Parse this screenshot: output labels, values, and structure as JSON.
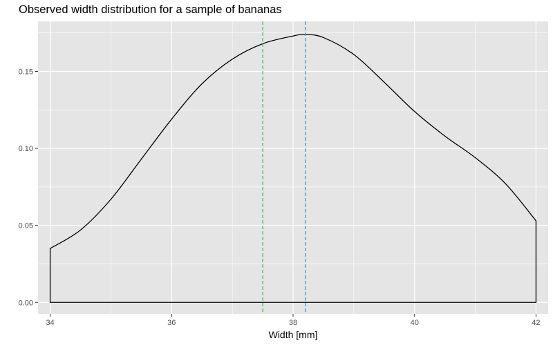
{
  "chart_data": {
    "type": "area",
    "title": "Observed width distribution for a sample of bananas",
    "xlabel": "Width [mm]",
    "ylabel": "",
    "xlim": [
      33.8,
      42.2
    ],
    "ylim": [
      -0.0075,
      0.1825
    ],
    "x_ticks": [
      34,
      36,
      38,
      40,
      42
    ],
    "x_tick_labels": [
      "34",
      "36",
      "38",
      "40",
      "42"
    ],
    "y_ticks": [
      0.0,
      0.05,
      0.1,
      0.15
    ],
    "y_tick_labels": [
      "0.00",
      "0.05",
      "0.10",
      "0.15"
    ],
    "grid": true,
    "panel_background": "#e5e5e5",
    "grid_color": "#ffffff",
    "series": [
      {
        "style": "density-outline",
        "color": "#000000",
        "x": [
          34.0,
          34.5,
          35.0,
          35.5,
          36.0,
          36.5,
          37.0,
          37.5,
          38.0,
          38.2,
          38.5,
          39.0,
          39.5,
          40.0,
          40.5,
          41.0,
          41.5,
          42.0
        ],
        "y": [
          0.035,
          0.047,
          0.067,
          0.093,
          0.119,
          0.142,
          0.158,
          0.168,
          0.173,
          0.174,
          0.172,
          0.161,
          0.143,
          0.124,
          0.108,
          0.094,
          0.077,
          0.053
        ]
      }
    ],
    "vlines": [
      {
        "x": 37.5,
        "color": "#2ebd52",
        "linestyle": "dashed"
      },
      {
        "x": 38.2,
        "color": "#4a8fc2",
        "linestyle": "dashed"
      }
    ]
  }
}
